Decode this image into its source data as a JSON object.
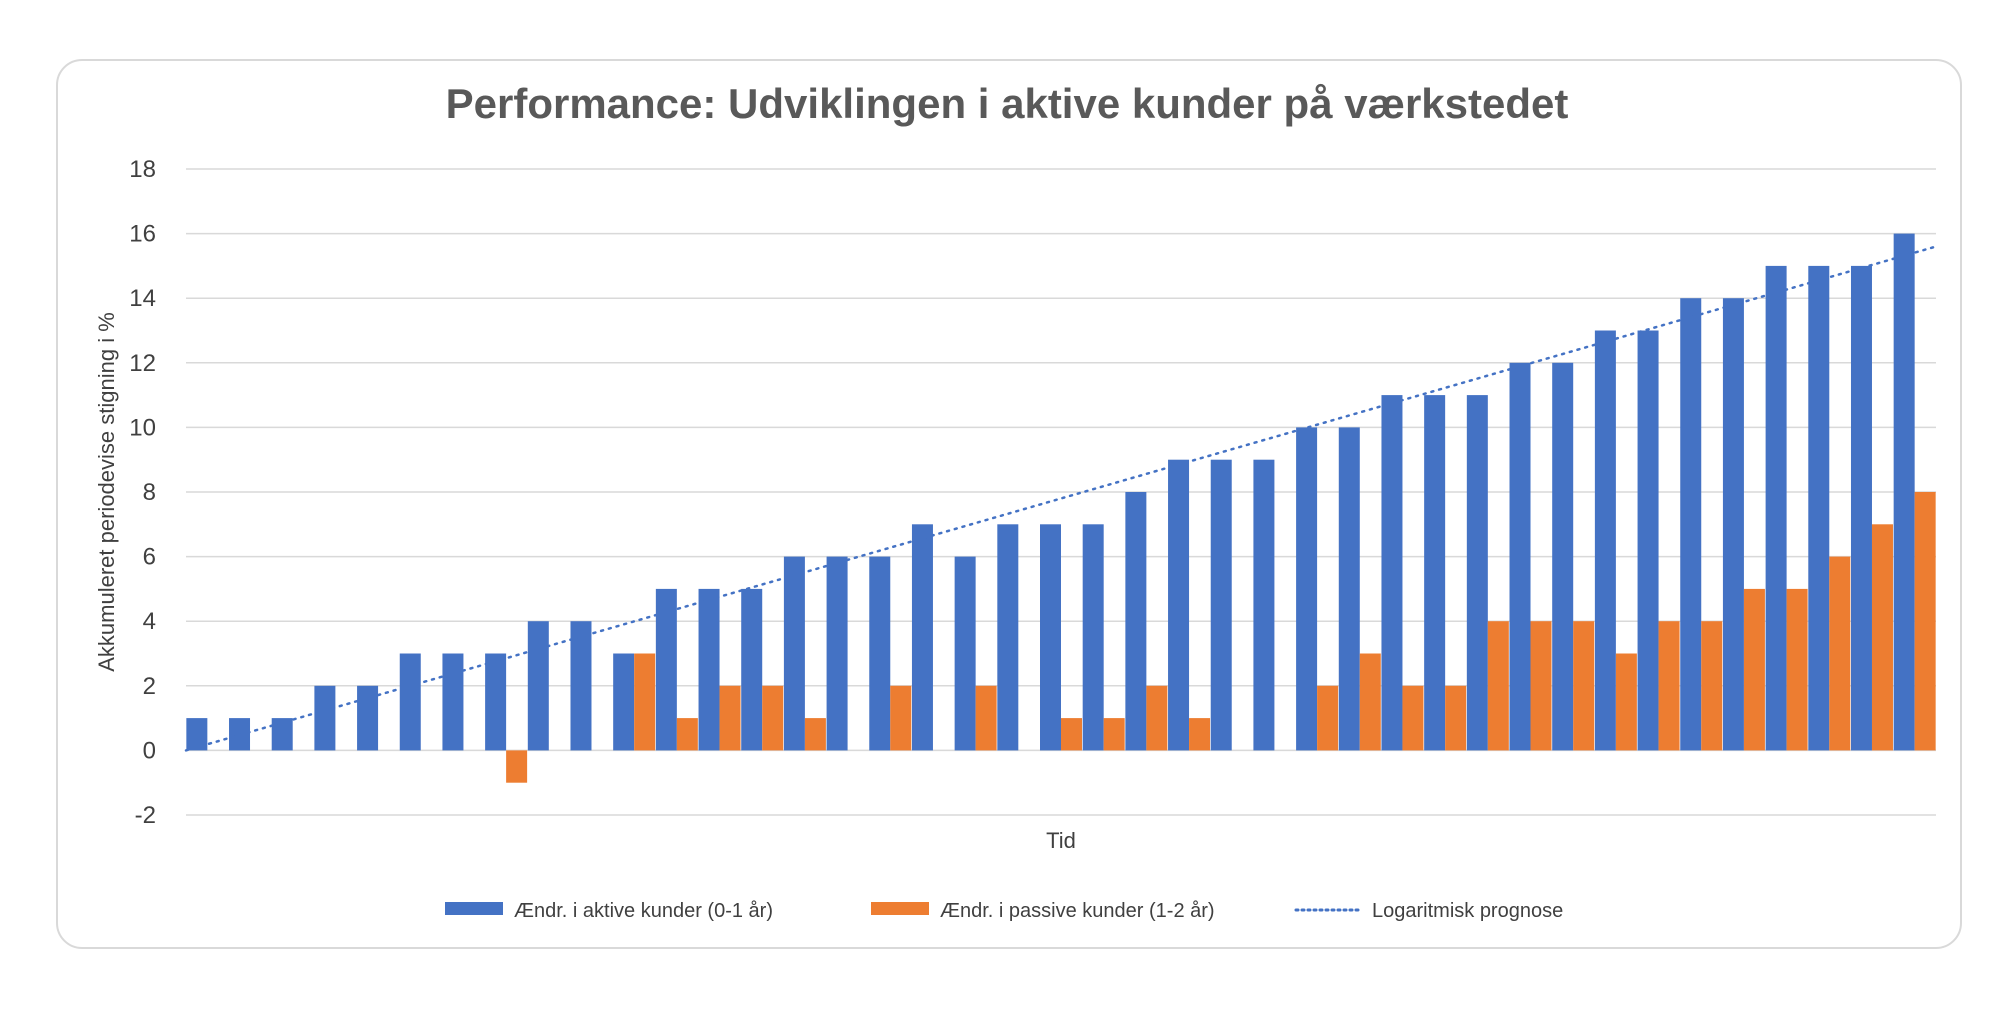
{
  "chart_data": {
    "type": "bar",
    "title": "Performance: Udviklingen i aktive kunder på værkstedet",
    "xlabel": "Tid",
    "ylabel": "Akkumuleret periodevise stigning i %",
    "ylim": [
      -2,
      18
    ],
    "yticks": [
      "-2",
      "0",
      "2",
      "4",
      "6",
      "8",
      "10",
      "12",
      "14",
      "16",
      "18"
    ],
    "grid": true,
    "legend_position": "bottom",
    "colors": {
      "active": "#4472c4",
      "passive": "#ed7d31",
      "trend": "#4472c4",
      "grid": "#d9d9d9"
    },
    "series": [
      {
        "name": "Ændr. i aktive kunder (0-1 år)",
        "values": [
          1,
          1,
          1,
          2,
          2,
          3,
          3,
          3,
          4,
          4,
          3,
          5,
          5,
          5,
          6,
          6,
          6,
          7,
          6,
          7,
          7,
          7,
          8,
          9,
          9,
          9,
          10,
          10,
          11,
          11,
          11,
          12,
          12,
          13,
          13,
          14,
          14,
          15,
          15,
          15,
          16
        ]
      },
      {
        "name": "Ændr. i passive kunder (1-2 år)",
        "values": [
          0,
          0,
          0,
          0,
          0,
          0,
          0,
          -1,
          0,
          0,
          3,
          1,
          2,
          2,
          1,
          0,
          2,
          0,
          2,
          0,
          1,
          1,
          2,
          1,
          0,
          0,
          2,
          3,
          2,
          2,
          4,
          4,
          4,
          3,
          4,
          4,
          5,
          5,
          6,
          7,
          8
        ]
      }
    ],
    "trendline": {
      "name": "Logaritmisk prognose",
      "style": "dotted",
      "start": [
        0,
        0
      ],
      "end": [
        41,
        15.6
      ]
    }
  }
}
